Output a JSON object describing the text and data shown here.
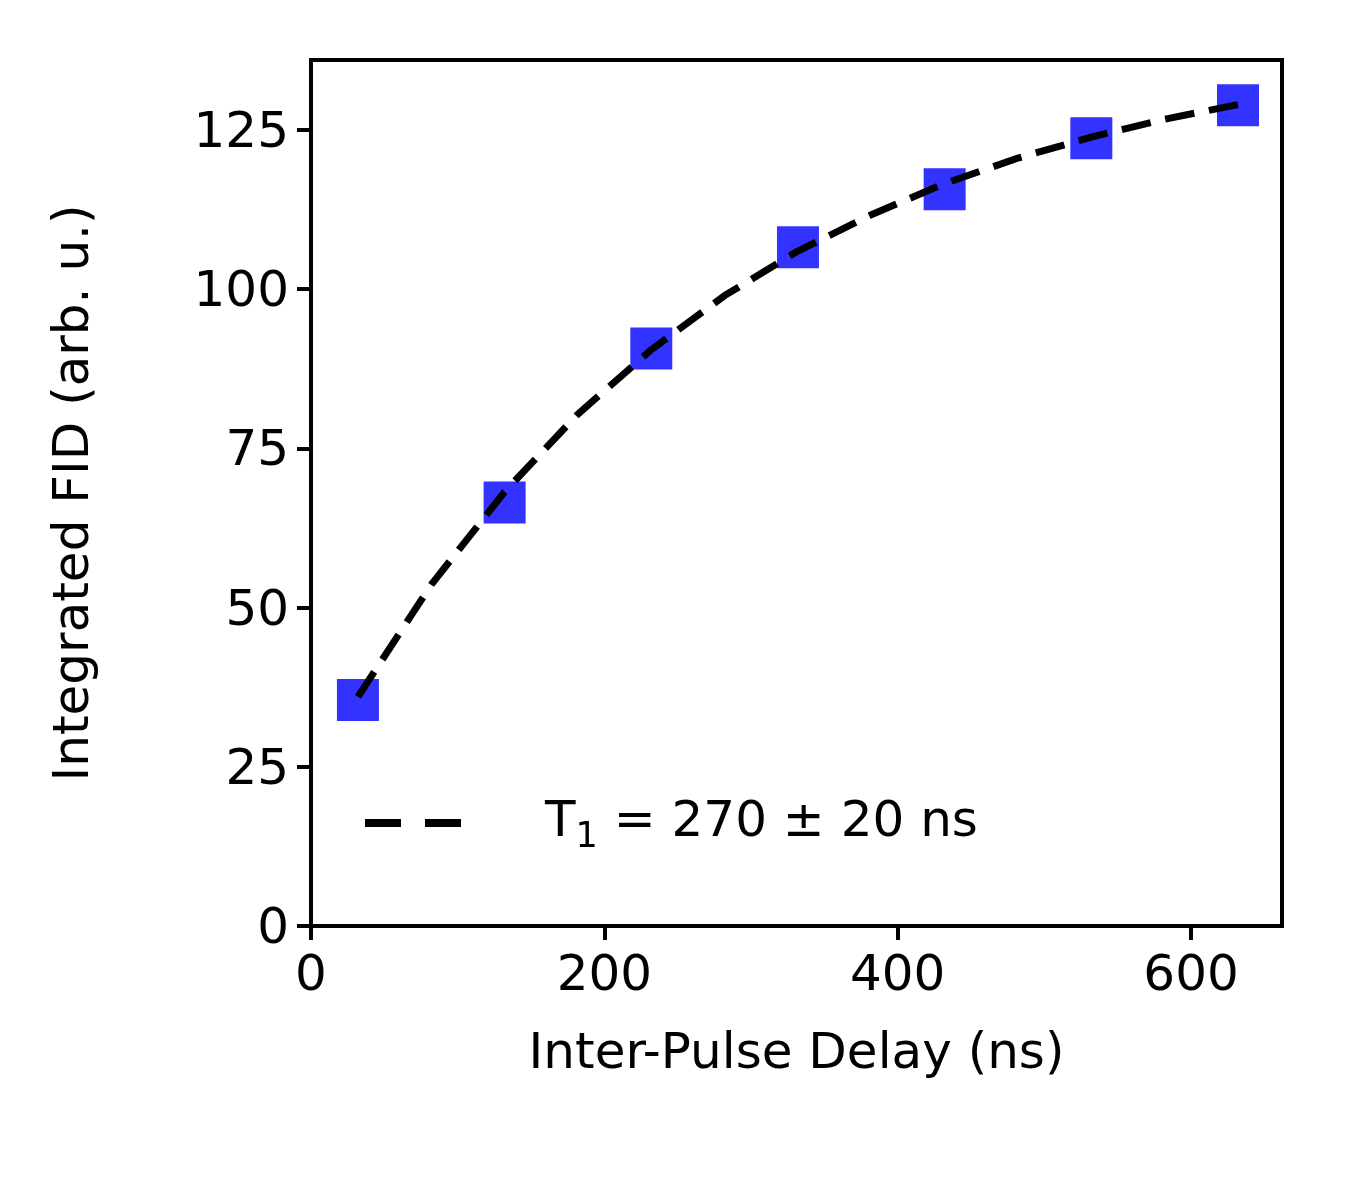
{
  "chart_data": {
    "type": "scatter",
    "xlabel": "Inter-Pulse Delay (ns)",
    "ylabel": "Integrated FID (arb. u.)",
    "x": [
      32,
      132,
      232,
      332,
      432,
      532,
      632
    ],
    "series": [
      {
        "type": "scatter",
        "color": "#0000ff",
        "marker": "square",
        "values": [
          35.5,
          66.5,
          90.7,
          106.6,
          115.7,
          123.7,
          128.9
        ]
      },
      {
        "type": "line",
        "name": "T$_{1}$ = 270 ± 20 ns",
        "color": "#000000",
        "marker": "none",
        "line_style": "dashed",
        "x": [
          32,
          82,
          132,
          182,
          232,
          282,
          332,
          382,
          432,
          482,
          532,
          582,
          632
        ],
        "values": [
          36.0,
          53.6,
          68.2,
          80.4,
          90.5,
          99.0,
          106.0,
          111.7,
          116.6,
          120.6,
          123.9,
          126.7,
          129.0
        ]
      }
    ],
    "xlim": [
      0,
      662
    ],
    "xticks": [
      0,
      200,
      400,
      600
    ],
    "ylim": [
      0,
      136
    ],
    "yticks": [
      0,
      25,
      50,
      75,
      100,
      125
    ],
    "grid": false,
    "legend": "bottom left"
  }
}
